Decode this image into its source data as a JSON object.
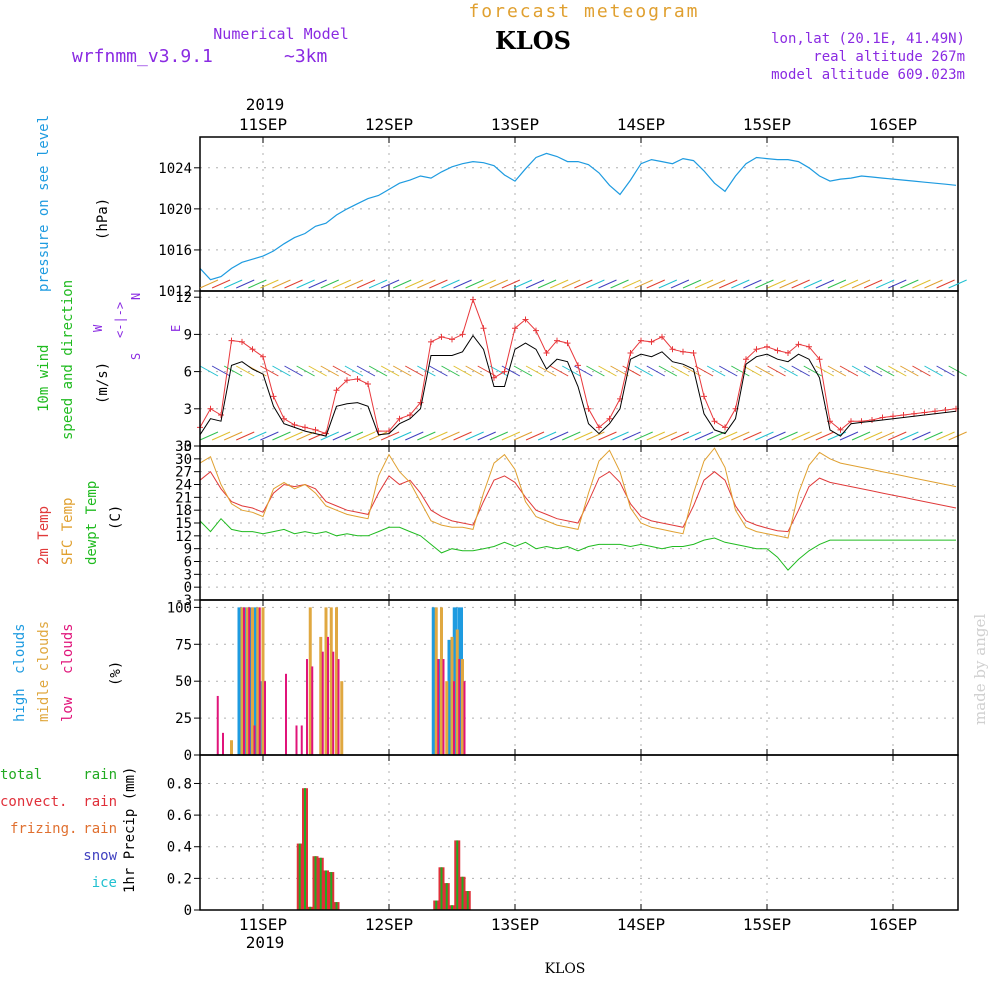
{
  "header": {
    "top_title": "forecast meteogram",
    "model_label": "Numerical Model",
    "model_name": "wrfnmm_v3.9.1",
    "resolution": "~3km",
    "station": "KLOS",
    "coords": "lon,lat (20.1E, 41.49N)",
    "real_altitude": "real altitude 267m",
    "model_altitude": "model altitude  609.023m",
    "watermark": "made by angel",
    "footer_station": "KLOS"
  },
  "colors": {
    "pressure": "#1e9be0",
    "wind_obs": "#e8383c",
    "temp2m": "#e03a3a",
    "sfc": "#e0a030",
    "dewpt": "#20bb20",
    "high_cloud": "#1e9be0",
    "mid_cloud": "#e0a840",
    "low_cloud": "#e0147a",
    "rain_total": "#22aa22",
    "rain_conv": "#e0303a",
    "frizing": "#e07030",
    "snow": "#4040c0",
    "ice": "#20c0d0",
    "purple": "#8a2be2",
    "orange_title": "#e0a030"
  },
  "time_axis": {
    "top_year": "2019",
    "bottom_year": "2019",
    "day_labels": [
      "11SEP",
      "12SEP",
      "13SEP",
      "14SEP",
      "15SEP",
      "16SEP"
    ],
    "start_hour_offset": 0,
    "total_hours": 144
  },
  "panels": {
    "pressure": {
      "label": "pressure on see level",
      "unit": "(hPa)"
    },
    "wind": {
      "label1": "10m wind",
      "label2": "speed and direction",
      "unit": "(m/s)",
      "compass_n": "N",
      "compass_s": "S",
      "compass_w": "W",
      "compass_e": "E",
      "compass_mid": "<-|->"
    },
    "temp": {
      "label1": "2m Temp",
      "label2": "SFC Temp",
      "label3": "dewpt Temp",
      "unit": "(C)"
    },
    "clouds": {
      "label_high": "high",
      "label_high2": "clouds",
      "label_mid": "midle clouds",
      "label_low": "low",
      "label_low2": "clouds",
      "unit": "(%)"
    },
    "precip": {
      "total": "total",
      "rain1": "rain",
      "convect": "convect.",
      "rain2": "rain",
      "frizing": "frizing.",
      "rain3": "rain",
      "snow": "snow",
      "ice": "ice",
      "unit": "1hr Precip (mm)"
    }
  },
  "chart_data": [
    {
      "type": "line",
      "panel": "pressure",
      "ylim": [
        1012,
        1027
      ],
      "y_ticks": [
        "1012",
        "1016",
        "1020",
        "1024"
      ],
      "x_hours": [
        0,
        2,
        4,
        6,
        8,
        10,
        12,
        14,
        16,
        18,
        20,
        22,
        24,
        26,
        28,
        30,
        32,
        34,
        36,
        38,
        40,
        42,
        44,
        46,
        48,
        50,
        52,
        54,
        56,
        58,
        60,
        62,
        64,
        66,
        68,
        70,
        72,
        74,
        76,
        78,
        80,
        82,
        84,
        86,
        88,
        90,
        92,
        94,
        96,
        98,
        100,
        102,
        104,
        106,
        108,
        110,
        112,
        114,
        116,
        118,
        120,
        122,
        124,
        126,
        128,
        130,
        132,
        134,
        136,
        138,
        140,
        142,
        144
      ],
      "series": [
        {
          "values": [
            1014.2,
            1013.1,
            1013.4,
            1014.2,
            1014.8,
            1015.1,
            1015.4,
            1015.9,
            1016.6,
            1017.2,
            1017.6,
            1018.3,
            1018.6,
            1019.4,
            1020.0,
            1020.5,
            1021.0,
            1021.3,
            1021.9,
            1022.5,
            1022.8,
            1023.2,
            1023.0,
            1023.6,
            1024.1,
            1024.4,
            1024.6,
            1024.5,
            1024.2,
            1023.3,
            1022.7,
            1023.9,
            1025.0,
            1025.4,
            1025.1,
            1024.6,
            1024.6,
            1024.3,
            1023.5,
            1022.3,
            1021.4,
            1022.8,
            1024.4,
            1024.8,
            1024.6,
            1024.4,
            1024.9,
            1024.7,
            1023.7,
            1022.5,
            1021.7,
            1023.2,
            1024.4,
            1025.0,
            1024.9,
            1024.8,
            1024.8,
            1024.6,
            1024.0,
            1023.2,
            1022.7,
            1022.9,
            1023.0,
            1023.2,
            1023.1,
            1023.0,
            1022.9,
            1022.8,
            1022.7,
            1022.6,
            1022.5,
            1022.4,
            1022.3
          ]
        }
      ]
    },
    {
      "type": "line",
      "panel": "wind",
      "ylim": [
        0,
        12.5
      ],
      "y_ticks": [
        "0",
        "3",
        "6",
        "9",
        "12"
      ],
      "x_hours": [
        0,
        2,
        4,
        6,
        8,
        10,
        12,
        14,
        16,
        18,
        20,
        22,
        24,
        26,
        28,
        30,
        32,
        34,
        36,
        38,
        40,
        42,
        44,
        46,
        48,
        50,
        52,
        54,
        56,
        58,
        60,
        62,
        64,
        66,
        68,
        70,
        72,
        74,
        76,
        78,
        80,
        82,
        84,
        86,
        88,
        90,
        92,
        94,
        96,
        98,
        100,
        102,
        104,
        106,
        108,
        110,
        112,
        114,
        116,
        118,
        120,
        122,
        124,
        126,
        128,
        130,
        132,
        134,
        136,
        138,
        140,
        142,
        144
      ],
      "series": [
        {
          "name": "speed",
          "values": [
            1.5,
            3.0,
            2.5,
            8.5,
            8.4,
            7.8,
            7.2,
            4.0,
            2.2,
            1.7,
            1.5,
            1.3,
            1.0,
            4.5,
            5.3,
            5.4,
            5.0,
            1.2,
            1.2,
            2.2,
            2.5,
            3.5,
            8.4,
            8.8,
            8.6,
            9.0,
            11.8,
            9.5,
            5.5,
            6.0,
            9.5,
            10.2,
            9.3,
            7.5,
            8.5,
            8.3,
            6.5,
            3.0,
            1.5,
            2.2,
            3.8,
            7.5,
            8.5,
            8.4,
            8.8,
            7.8,
            7.6,
            7.5,
            4.0,
            2.0,
            1.5,
            3.0,
            7.0,
            7.8,
            8.0,
            7.7,
            7.5,
            8.2,
            8.0,
            7.0,
            2.0,
            1.3,
            2.0,
            2.0,
            2.1,
            2.3,
            2.4,
            2.5,
            2.6,
            2.7,
            2.8,
            2.9,
            3.0
          ]
        },
        {
          "name": "model",
          "values": [
            0.9,
            2.2,
            2.0,
            6.5,
            6.8,
            6.2,
            5.8,
            3.2,
            1.8,
            1.5,
            1.2,
            1.0,
            0.8,
            3.2,
            3.4,
            3.5,
            3.2,
            0.9,
            1.0,
            1.8,
            2.2,
            3.0,
            7.3,
            7.3,
            7.3,
            7.6,
            8.9,
            7.8,
            4.8,
            4.8,
            7.8,
            8.3,
            7.8,
            6.2,
            7.0,
            6.8,
            4.8,
            1.8,
            1.0,
            1.8,
            3.0,
            7.0,
            7.4,
            7.2,
            7.6,
            6.8,
            6.6,
            6.2,
            2.6,
            1.3,
            1.0,
            2.2,
            6.6,
            7.2,
            7.4,
            7.0,
            6.8,
            7.4,
            7.0,
            5.5,
            1.3,
            0.8,
            1.8,
            1.9,
            2.0,
            2.1,
            2.2,
            2.3,
            2.4,
            2.5,
            2.6,
            2.7,
            2.8
          ]
        }
      ]
    },
    {
      "type": "line",
      "panel": "temp",
      "ylim": [
        -3,
        33
      ],
      "y_ticks": [
        "-3",
        "0",
        "3",
        "6",
        "9",
        "12",
        "15",
        "18",
        "21",
        "24",
        "27",
        "30",
        "33"
      ],
      "x_hours": [
        0,
        2,
        4,
        6,
        8,
        10,
        12,
        14,
        16,
        18,
        20,
        22,
        24,
        26,
        28,
        30,
        32,
        34,
        36,
        38,
        40,
        42,
        44,
        46,
        48,
        50,
        52,
        54,
        56,
        58,
        60,
        62,
        64,
        66,
        68,
        70,
        72,
        74,
        76,
        78,
        80,
        82,
        84,
        86,
        88,
        90,
        92,
        94,
        96,
        98,
        100,
        102,
        104,
        106,
        108,
        110,
        112,
        114,
        116,
        118,
        120,
        122,
        124,
        126,
        128,
        130,
        132,
        134,
        136,
        138,
        140,
        142,
        144
      ],
      "series": [
        {
          "name": "2m Temp",
          "values": [
            25.0,
            27.0,
            23.0,
            20.0,
            19.0,
            18.5,
            17.5,
            22.0,
            24.0,
            23.5,
            24.0,
            23.0,
            20.0,
            19.0,
            18.0,
            17.5,
            17.0,
            22.0,
            26.0,
            24.0,
            25.0,
            22.0,
            18.0,
            16.5,
            15.5,
            15.0,
            14.5,
            20.0,
            25.0,
            26.0,
            24.5,
            21.0,
            18.0,
            17.0,
            16.0,
            15.5,
            15.0,
            20.0,
            25.5,
            27.0,
            24.5,
            19.5,
            16.5,
            15.5,
            15.0,
            14.5,
            14.0,
            19.0,
            25.0,
            27.0,
            25.0,
            19.0,
            15.5,
            14.5,
            13.8,
            13.2,
            13.0,
            18.0,
            23.5,
            25.5,
            24.5,
            24.0,
            23.5,
            23.0,
            22.5,
            22.0,
            21.5,
            21.0,
            20.5,
            20.0,
            19.5,
            19.0,
            18.5
          ]
        },
        {
          "name": "SFC Temp",
          "values": [
            29.0,
            30.5,
            24.0,
            19.5,
            18.0,
            17.5,
            16.5,
            23.0,
            24.5,
            23.0,
            24.0,
            22.0,
            19.0,
            18.0,
            17.0,
            16.5,
            16.0,
            26.0,
            31.0,
            27.0,
            24.5,
            20.0,
            15.5,
            14.5,
            14.0,
            14.0,
            13.5,
            22.0,
            29.0,
            31.0,
            27.5,
            20.0,
            16.5,
            15.5,
            14.5,
            14.0,
            13.5,
            22.0,
            29.5,
            32.0,
            27.0,
            18.5,
            15.0,
            14.0,
            13.5,
            13.0,
            12.5,
            22.0,
            29.5,
            32.5,
            28.0,
            18.0,
            14.0,
            13.0,
            12.5,
            12.0,
            11.5,
            22.0,
            28.5,
            31.5,
            30.0,
            29.0,
            28.5,
            28.0,
            27.5,
            27.0,
            26.5,
            26.0,
            25.5,
            25.0,
            24.5,
            24.0,
            23.5
          ]
        },
        {
          "name": "dewpt Temp",
          "values": [
            15.5,
            13.0,
            16.0,
            13.5,
            13.0,
            13.0,
            12.5,
            13.0,
            13.5,
            12.5,
            13.0,
            12.5,
            13.0,
            12.0,
            12.5,
            12.0,
            12.0,
            13.0,
            14.0,
            14.0,
            13.0,
            12.0,
            10.0,
            8.0,
            9.0,
            8.5,
            8.5,
            9.0,
            9.5,
            10.5,
            9.5,
            10.5,
            9.0,
            9.5,
            9.0,
            9.5,
            8.5,
            9.5,
            10.0,
            10.0,
            10.0,
            9.5,
            10.0,
            9.5,
            9.0,
            9.5,
            9.5,
            10.0,
            11.0,
            11.5,
            10.5,
            10.0,
            9.5,
            9.0,
            9.0,
            7.0,
            4.0,
            6.5,
            8.5,
            10.0,
            11.0,
            11.0,
            11.0,
            11.0,
            11.0,
            11.0,
            11.0,
            11.0,
            11.0,
            11.0,
            11.0,
            11.0,
            11.0
          ]
        }
      ]
    },
    {
      "type": "bar",
      "panel": "clouds",
      "ylim": [
        0,
        105
      ],
      "y_ticks": [
        "0",
        "25",
        "50",
        "75",
        "100"
      ],
      "x_hours": [
        3,
        4,
        5,
        6,
        7,
        8,
        9,
        10,
        11,
        12,
        13,
        16,
        17,
        18,
        19,
        20,
        21,
        22,
        23,
        24,
        25,
        26,
        27,
        45,
        46,
        47,
        48,
        49,
        50
      ],
      "series": [
        {
          "name": "high clouds",
          "values": [
            0,
            0,
            0,
            0,
            0,
            100,
            100,
            100,
            100,
            50,
            0,
            0,
            0,
            0,
            0,
            0,
            0,
            0,
            0,
            0,
            0,
            0,
            0,
            100,
            65,
            0,
            78,
            100,
            100
          ]
        },
        {
          "name": "midle clouds",
          "values": [
            0,
            0,
            0,
            10,
            0,
            100,
            100,
            100,
            100,
            100,
            0,
            0,
            0,
            0,
            0,
            0,
            100,
            0,
            80,
            100,
            100,
            100,
            50,
            100,
            100,
            50,
            80,
            85,
            65
          ]
        },
        {
          "name": "low clouds",
          "values": [
            40,
            15,
            0,
            0,
            0,
            100,
            100,
            20,
            100,
            50,
            0,
            55,
            0,
            20,
            20,
            65,
            60,
            0,
            70,
            80,
            70,
            65,
            0,
            65,
            65,
            0,
            50,
            65,
            50
          ]
        }
      ]
    },
    {
      "type": "bar",
      "panel": "precip",
      "ylim": [
        0,
        0.98
      ],
      "y_ticks": [
        "0",
        "0.2",
        "0.4",
        "0.6",
        "0.8"
      ],
      "x_hours": [
        18,
        19,
        20,
        21,
        22,
        23,
        24,
        25,
        26,
        45,
        46,
        47,
        48,
        49,
        50,
        51
      ],
      "series": [
        {
          "name": "total rain",
          "values": [
            0.0,
            0.42,
            0.77,
            0.02,
            0.34,
            0.33,
            0.25,
            0.24,
            0.05,
            0.06,
            0.27,
            0.17,
            0.03,
            0.44,
            0.21,
            0.12
          ]
        }
      ]
    }
  ]
}
